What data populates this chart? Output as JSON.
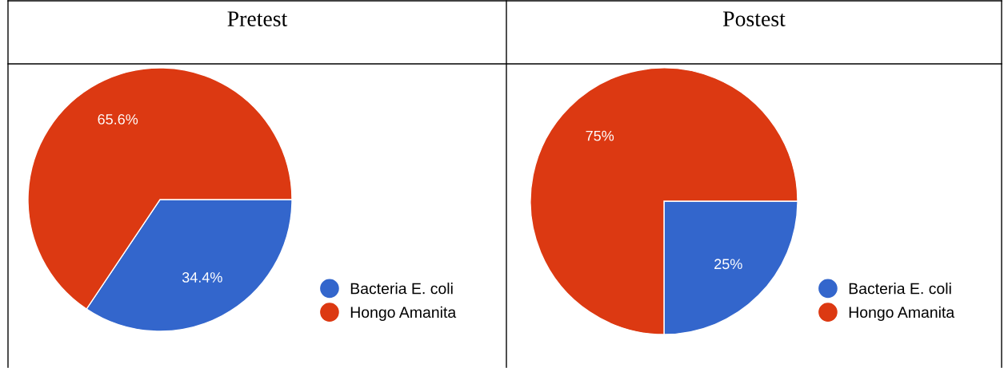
{
  "chart_data": [
    {
      "type": "pie",
      "title": "Pretest",
      "categories": [
        "Bacteria E. coli",
        "Hongo Amanita"
      ],
      "values": [
        34.4,
        65.6
      ],
      "colors": [
        "#3366cc",
        "#dc3912"
      ],
      "value_labels": [
        "34.4%",
        "65.6%"
      ],
      "legend": "right"
    },
    {
      "type": "pie",
      "title": "Postest",
      "categories": [
        "Bacteria E. coli",
        "Hongo Amanita"
      ],
      "values": [
        25,
        75
      ],
      "colors": [
        "#3366cc",
        "#dc3912"
      ],
      "value_labels": [
        "25%",
        "75%"
      ],
      "legend": "right"
    }
  ]
}
